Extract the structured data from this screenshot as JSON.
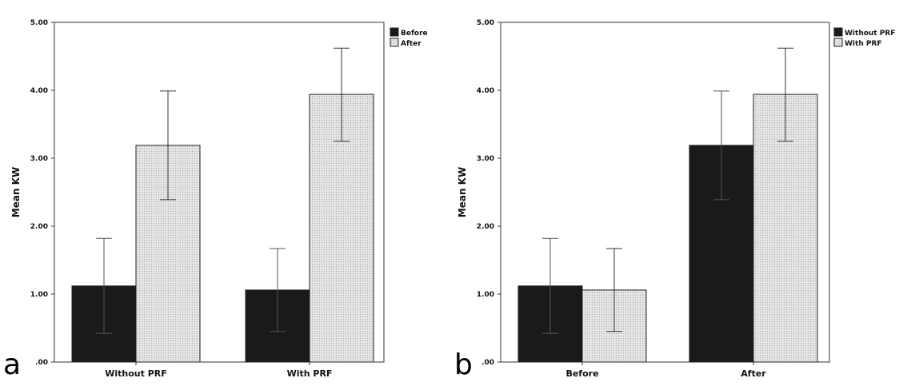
{
  "chart_data": [
    {
      "type": "bar",
      "panel_label": "a",
      "title": "",
      "xlabel": "",
      "ylabel": "Mean KW",
      "ylim": [
        0,
        5
      ],
      "yticks": [
        ".00",
        "1.00",
        "2.00",
        "3.00",
        "4.00",
        "5.00"
      ],
      "categories": [
        "Without PRF",
        "With PRF"
      ],
      "legend_position": "top-right",
      "grid": false,
      "series": [
        {
          "name": "Before",
          "color": "#1a1a1a",
          "pattern": "solid",
          "values": [
            1.12,
            1.06
          ],
          "err_low": [
            0.42,
            0.45
          ],
          "err_high": [
            1.82,
            1.67
          ]
        },
        {
          "name": "After",
          "color": "#d8d8d8",
          "pattern": "dotted",
          "values": [
            3.19,
            3.94
          ],
          "err_low": [
            2.39,
            3.25
          ],
          "err_high": [
            3.99,
            4.62
          ]
        }
      ]
    },
    {
      "type": "bar",
      "panel_label": "b",
      "title": "",
      "xlabel": "",
      "ylabel": "Mean KW",
      "ylim": [
        0,
        5
      ],
      "yticks": [
        ".00",
        "1.00",
        "2.00",
        "3.00",
        "4.00",
        "5.00"
      ],
      "categories": [
        "Before",
        "After"
      ],
      "legend_position": "top-right",
      "grid": false,
      "series": [
        {
          "name": "Without PRF",
          "color": "#1a1a1a",
          "pattern": "solid",
          "values": [
            1.12,
            3.19
          ],
          "err_low": [
            0.42,
            2.39
          ],
          "err_high": [
            1.82,
            3.99
          ]
        },
        {
          "name": "With PRF",
          "color": "#d8d8d8",
          "pattern": "dotted",
          "values": [
            1.06,
            3.94
          ],
          "err_low": [
            0.45,
            3.25
          ],
          "err_high": [
            1.67,
            4.62
          ]
        }
      ]
    }
  ]
}
